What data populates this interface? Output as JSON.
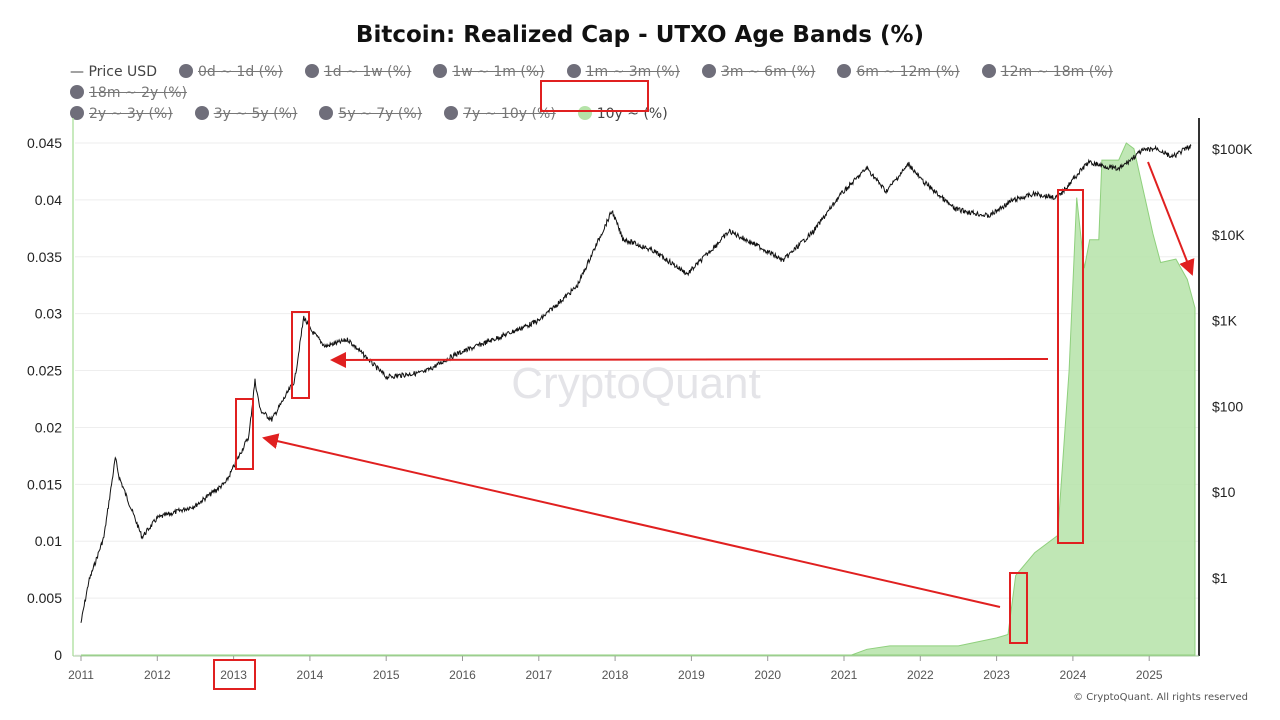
{
  "chart_data": {
    "type": "line",
    "title": "Bitcoin: Realized Cap - UTXO Age Bands (%)",
    "legend": [
      {
        "label": "Price USD",
        "active": true,
        "marker": "line"
      },
      {
        "label": "0d ~ 1d (%)",
        "active": false
      },
      {
        "label": "1d ~ 1w (%)",
        "active": false
      },
      {
        "label": "1w ~ 1m (%)",
        "active": false
      },
      {
        "label": "1m ~ 3m (%)",
        "active": false
      },
      {
        "label": "3m ~ 6m (%)",
        "active": false
      },
      {
        "label": "6m ~ 12m (%)",
        "active": false
      },
      {
        "label": "12m ~ 18m (%)",
        "active": false
      },
      {
        "label": "18m ~ 2y (%)",
        "active": false
      },
      {
        "label": "2y ~ 3y (%)",
        "active": false
      },
      {
        "label": "3y ~ 5y (%)",
        "active": false
      },
      {
        "label": "5y ~ 7y (%)",
        "active": false
      },
      {
        "label": "7y ~ 10y (%)",
        "active": false
      },
      {
        "label": "10y ~ (%)",
        "active": true
      }
    ],
    "legend_placement": "top",
    "x_ticks": [
      "2011",
      "2012",
      "2013",
      "2014",
      "2015",
      "2016",
      "2017",
      "2018",
      "2019",
      "2020",
      "2021",
      "2022",
      "2023",
      "2024",
      "2025"
    ],
    "x_range": [
      2011,
      2025.6
    ],
    "y_left_ticks": [
      "0",
      "0.005",
      "0.01",
      "0.015",
      "0.02",
      "0.025",
      "0.03",
      "0.035",
      "0.04",
      "0.045"
    ],
    "y_left_range": [
      0,
      0.045
    ],
    "y_right_ticks": [
      "$1",
      "$10",
      "$100",
      "$1K",
      "$10K",
      "$100K"
    ],
    "y_right_scale": "log",
    "grid": "horizontal",
    "series": [
      {
        "name": "Price USD",
        "axis": "right",
        "color": "#111111",
        "points": [
          [
            2011.0,
            0.3
          ],
          [
            2011.1,
            0.9
          ],
          [
            2011.3,
            3
          ],
          [
            2011.45,
            25
          ],
          [
            2011.5,
            15
          ],
          [
            2011.8,
            3
          ],
          [
            2012.0,
            5
          ],
          [
            2012.5,
            7
          ],
          [
            2012.9,
            13
          ],
          [
            2013.2,
            45
          ],
          [
            2013.28,
            200
          ],
          [
            2013.35,
            90
          ],
          [
            2013.5,
            70
          ],
          [
            2013.8,
            200
          ],
          [
            2013.92,
            1100
          ],
          [
            2014.0,
            800
          ],
          [
            2014.2,
            500
          ],
          [
            2014.5,
            600
          ],
          [
            2015.0,
            220
          ],
          [
            2015.5,
            250
          ],
          [
            2015.9,
            400
          ],
          [
            2016.5,
            650
          ],
          [
            2017.0,
            1000
          ],
          [
            2017.5,
            2500
          ],
          [
            2017.96,
            19000
          ],
          [
            2018.1,
            9000
          ],
          [
            2018.5,
            6500
          ],
          [
            2018.95,
            3500
          ],
          [
            2019.5,
            11000
          ],
          [
            2019.9,
            7200
          ],
          [
            2020.2,
            5000
          ],
          [
            2020.6,
            11000
          ],
          [
            2020.95,
            29000
          ],
          [
            2021.3,
            60000
          ],
          [
            2021.55,
            32000
          ],
          [
            2021.85,
            67000
          ],
          [
            2022.0,
            45000
          ],
          [
            2022.45,
            20000
          ],
          [
            2022.9,
            16500
          ],
          [
            2023.2,
            25000
          ],
          [
            2023.5,
            30000
          ],
          [
            2023.8,
            27000
          ],
          [
            2024.0,
            44000
          ],
          [
            2024.2,
            70000
          ],
          [
            2024.6,
            58000
          ],
          [
            2024.9,
            95000
          ],
          [
            2025.1,
            102000
          ],
          [
            2025.3,
            80000
          ],
          [
            2025.55,
            110000
          ]
        ]
      },
      {
        "name": "10y ~ (%)",
        "axis": "left",
        "color": "#b5e3a8",
        "points": [
          [
            2011.0,
            0
          ],
          [
            2021.1,
            0
          ],
          [
            2021.3,
            0.0005
          ],
          [
            2021.6,
            0.0008
          ],
          [
            2022.5,
            0.0008
          ],
          [
            2023.0,
            0.0015
          ],
          [
            2023.15,
            0.0018
          ],
          [
            2023.25,
            0.007
          ],
          [
            2023.5,
            0.009
          ],
          [
            2023.8,
            0.0105
          ],
          [
            2023.95,
            0.025
          ],
          [
            2024.05,
            0.0402
          ],
          [
            2024.15,
            0.034
          ],
          [
            2024.22,
            0.0365
          ],
          [
            2024.34,
            0.0365
          ],
          [
            2024.38,
            0.0435
          ],
          [
            2024.6,
            0.0435
          ],
          [
            2024.7,
            0.045
          ],
          [
            2024.8,
            0.0445
          ],
          [
            2024.95,
            0.04
          ],
          [
            2025.05,
            0.037
          ],
          [
            2025.15,
            0.0345
          ],
          [
            2025.35,
            0.0348
          ],
          [
            2025.5,
            0.033
          ],
          [
            2025.6,
            0.0305
          ]
        ]
      }
    ],
    "watermark": "CryptoQuant"
  },
  "footer": "© CryptoQuant. All rights reserved",
  "colors": {
    "annotation": "#e02020",
    "band_fill": "#b5e3a8",
    "band_line": "#8fd07d"
  }
}
